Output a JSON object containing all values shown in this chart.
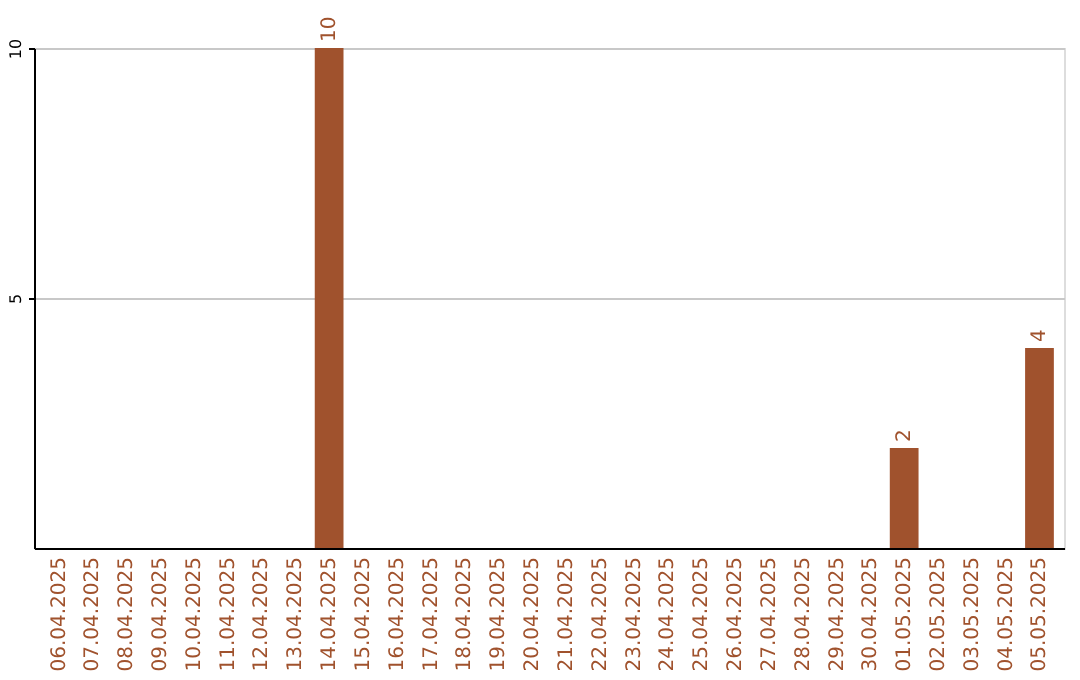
{
  "chart_data": {
    "type": "bar",
    "categories": [
      "06.04.2025",
      "07.04.2025",
      "08.04.2025",
      "09.04.2025",
      "10.04.2025",
      "11.04.2025",
      "12.04.2025",
      "13.04.2025",
      "14.04.2025",
      "15.04.2025",
      "16.04.2025",
      "17.04.2025",
      "18.04.2025",
      "19.04.2025",
      "20.04.2025",
      "21.04.2025",
      "22.04.2025",
      "23.04.2025",
      "24.04.2025",
      "25.04.2025",
      "26.04.2025",
      "27.04.2025",
      "28.04.2025",
      "29.04.2025",
      "30.04.2025",
      "01.05.2025",
      "02.05.2025",
      "03.05.2025",
      "04.05.2025",
      "05.05.2025"
    ],
    "values": [
      0,
      0,
      0,
      0,
      0,
      0,
      0,
      0,
      10,
      0,
      0,
      0,
      0,
      0,
      0,
      0,
      0,
      0,
      0,
      0,
      0,
      0,
      0,
      0,
      0,
      2,
      0,
      0,
      0,
      4
    ],
    "value_labels": [
      null,
      null,
      null,
      null,
      null,
      null,
      null,
      null,
      "10",
      null,
      null,
      null,
      null,
      null,
      null,
      null,
      null,
      null,
      null,
      null,
      null,
      null,
      null,
      null,
      null,
      "2",
      null,
      null,
      null,
      "4"
    ],
    "color": "#a0522d",
    "ylim": [
      0,
      10
    ],
    "yticks": [
      5,
      10
    ],
    "grid": "y"
  }
}
